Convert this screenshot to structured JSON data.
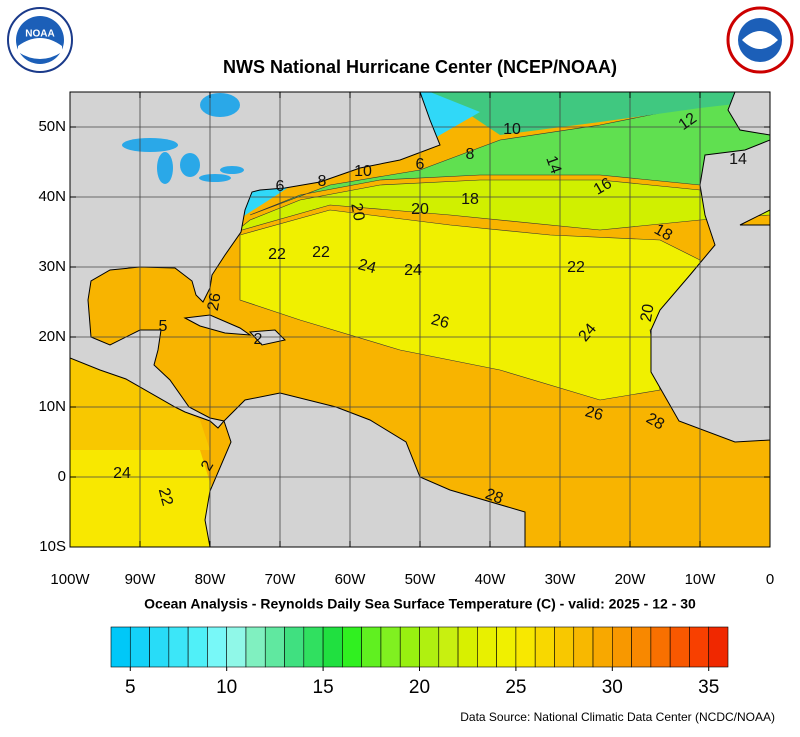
{
  "header": {
    "title": "NWS National Hurricane Center (NCEP/NOAA)"
  },
  "map": {
    "lat_range": [
      -10,
      55
    ],
    "lon_range": [
      -100,
      0
    ],
    "latitude_ticks": [
      {
        "value": 50,
        "label": "50N"
      },
      {
        "value": 40,
        "label": "40N"
      },
      {
        "value": 30,
        "label": "30N"
      },
      {
        "value": 20,
        "label": "20N"
      },
      {
        "value": 10,
        "label": "10N"
      },
      0,
      {
        "value": -10,
        "label": "10S"
      }
    ],
    "longitude_ticks": [
      {
        "value": -100,
        "label": "100W"
      },
      {
        "value": -90,
        "label": "90W"
      },
      {
        "value": -80,
        "label": "80W"
      },
      {
        "value": -70,
        "label": "70W"
      },
      {
        "value": -60,
        "label": "60W"
      },
      {
        "value": -50,
        "label": "50W"
      },
      {
        "value": -40,
        "label": "40W"
      },
      {
        "value": -30,
        "label": "30W"
      },
      {
        "value": -20,
        "label": "20W"
      },
      {
        "value": -10,
        "label": "10W"
      },
      0
    ],
    "grid": true,
    "contour_labels": [
      10,
      12,
      14,
      8,
      6,
      10,
      8,
      6,
      14,
      16,
      18,
      20,
      20,
      18,
      22,
      22,
      24,
      24,
      22,
      26,
      5,
      2,
      26,
      24,
      20,
      26,
      28,
      24,
      22,
      2,
      28
    ]
  },
  "caption": "Ocean Analysis - Reynolds Daily Sea Surface Temperature (C) - valid: 2025 - 12 - 30",
  "colorbar": {
    "range": [
      4,
      36
    ],
    "ticks": [
      5,
      10,
      15,
      20,
      25,
      30,
      35
    ],
    "colors": [
      "#00c8f8",
      "#14d2f8",
      "#28dcf8",
      "#3ce6f8",
      "#50f0f8",
      "#78f8f8",
      "#90f8e8",
      "#80f0c0",
      "#60e8a0",
      "#40e080",
      "#30e060",
      "#20e040",
      "#30f020",
      "#60f020",
      "#80f020",
      "#98f010",
      "#b0f010",
      "#c8f010",
      "#d8f000",
      "#e8f000",
      "#f0f000",
      "#f8e800",
      "#f8d800",
      "#f8c800",
      "#f8b800",
      "#f8a800",
      "#f89800",
      "#f88800",
      "#f87000",
      "#f85800",
      "#f84000",
      "#f02800"
    ]
  },
  "footer": {
    "source": "Data Source: National Climatic Data Center (NCDC/NOAA)"
  }
}
